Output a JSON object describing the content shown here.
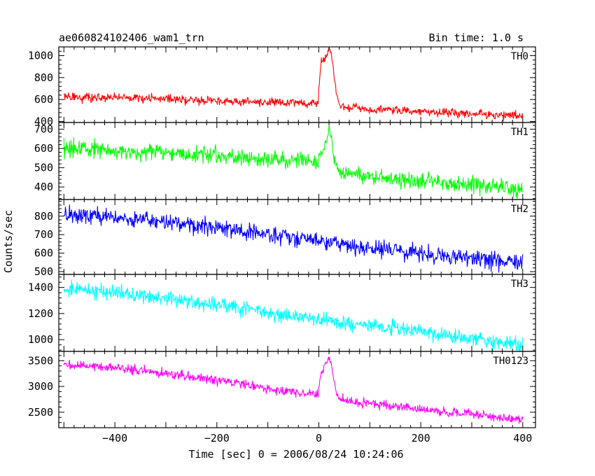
{
  "header": {
    "title": "ae060824102406_wam1_trn",
    "bin_time": "Bin time: 1.0 s"
  },
  "axes": {
    "xlabel": "Time [sec] 0 = 2006/08/24 10:24:06",
    "ylabel": "Counts/sec"
  },
  "chart_data": {
    "type": "line",
    "title": "ae060824102406_wam1_trn",
    "subtitle": "Bin time: 1.0 s",
    "xlabel": "Time [sec] 0 = 2006/08/24 10:24:06",
    "ylabel": "Counts/sec",
    "xlim": [
      -510,
      425
    ],
    "x_ticks": [
      -400,
      -200,
      0,
      200,
      400
    ],
    "x_tick_labels": [
      "−400",
      "−200",
      "0",
      "200",
      "400"
    ],
    "x_start": -500,
    "x_end": 400,
    "bin_time_s": 1.0,
    "grid": false,
    "panels": [
      {
        "name": "TH0",
        "color": "#ff0000",
        "ylim": [
          390,
          1080
        ],
        "y_ticks": [
          400,
          600,
          800,
          1000
        ],
        "y_tick_labels": [
          "400",
          "600",
          "800",
          "1000"
        ],
        "baseline": [
          [
            -500,
            625
          ],
          [
            -400,
            615
          ],
          [
            -300,
            605
          ],
          [
            -200,
            590
          ],
          [
            -100,
            575
          ],
          [
            -10,
            565
          ],
          [
            40,
            530
          ],
          [
            100,
            510
          ],
          [
            200,
            490
          ],
          [
            300,
            470
          ],
          [
            400,
            450
          ]
        ],
        "noise": 28,
        "flare": [
          [
            0,
            700
          ],
          [
            5,
            960
          ],
          [
            10,
            940
          ],
          [
            15,
            1010
          ],
          [
            20,
            1060
          ],
          [
            25,
            1000
          ],
          [
            30,
            820
          ],
          [
            35,
            650
          ],
          [
            40,
            560
          ]
        ]
      },
      {
        "name": "TH1",
        "color": "#00ff00",
        "ylim": [
          335,
          735
        ],
        "y_ticks": [
          400,
          500,
          600,
          700
        ],
        "y_tick_labels": [
          "400",
          "500",
          "600",
          "700"
        ],
        "baseline": [
          [
            -500,
            600
          ],
          [
            -400,
            590
          ],
          [
            -300,
            575
          ],
          [
            -200,
            560
          ],
          [
            -100,
            545
          ],
          [
            -10,
            530
          ],
          [
            40,
            475
          ],
          [
            100,
            455
          ],
          [
            200,
            430
          ],
          [
            300,
            410
          ],
          [
            400,
            385
          ]
        ],
        "noise": 30,
        "flare": [
          [
            0,
            560
          ],
          [
            10,
            600
          ],
          [
            15,
            640
          ],
          [
            20,
            700
          ],
          [
            25,
            640
          ],
          [
            30,
            540
          ],
          [
            40,
            485
          ]
        ]
      },
      {
        "name": "TH2",
        "color": "#0000ff",
        "ylim": [
          485,
          890
        ],
        "y_ticks": [
          500,
          600,
          700,
          800
        ],
        "y_tick_labels": [
          "500",
          "600",
          "700",
          "800"
        ],
        "baseline": [
          [
            -500,
            810
          ],
          [
            -400,
            795
          ],
          [
            -300,
            770
          ],
          [
            -200,
            740
          ],
          [
            -100,
            700
          ],
          [
            0,
            665
          ],
          [
            100,
            625
          ],
          [
            200,
            595
          ],
          [
            300,
            570
          ],
          [
            400,
            550
          ]
        ],
        "noise": 33,
        "flare": []
      },
      {
        "name": "TH3",
        "color": "#00ffff",
        "ylim": [
          910,
          1500
        ],
        "y_ticks": [
          1000,
          1200,
          1400
        ],
        "y_tick_labels": [
          "1000",
          "1200",
          "1400"
        ],
        "baseline": [
          [
            -500,
            1380
          ],
          [
            -400,
            1360
          ],
          [
            -300,
            1310
          ],
          [
            -200,
            1270
          ],
          [
            -100,
            1210
          ],
          [
            0,
            1150
          ],
          [
            100,
            1110
          ],
          [
            200,
            1060
          ],
          [
            300,
            1000
          ],
          [
            400,
            960
          ]
        ],
        "noise": 40,
        "flare": []
      },
      {
        "name": "TH0123",
        "color": "#ff00ff",
        "ylim": [
          2200,
          3680
        ],
        "y_ticks": [
          2500,
          3000,
          3500
        ],
        "y_tick_labels": [
          "2500",
          "3000",
          "3500"
        ],
        "baseline": [
          [
            -500,
            3420
          ],
          [
            -400,
            3370
          ],
          [
            -300,
            3260
          ],
          [
            -200,
            3130
          ],
          [
            -100,
            2960
          ],
          [
            -10,
            2850
          ],
          [
            40,
            2740
          ],
          [
            100,
            2680
          ],
          [
            200,
            2560
          ],
          [
            300,
            2460
          ],
          [
            400,
            2340
          ]
        ],
        "noise": 60,
        "flare": [
          [
            0,
            3000
          ],
          [
            5,
            3250
          ],
          [
            10,
            3380
          ],
          [
            15,
            3500
          ],
          [
            20,
            3560
          ],
          [
            25,
            3400
          ],
          [
            30,
            3100
          ],
          [
            35,
            2850
          ],
          [
            40,
            2760
          ]
        ]
      }
    ]
  }
}
